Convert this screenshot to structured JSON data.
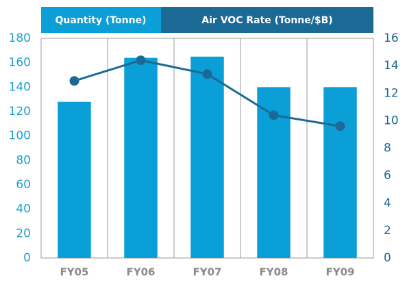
{
  "chart_data": {
    "type": "bar",
    "categories": [
      "FY05",
      "FY06",
      "FY07",
      "FY08",
      "FY09"
    ],
    "series": [
      {
        "name": "Quantity (Tonne)",
        "type": "bar",
        "color": "#0a9fd6",
        "values": [
          128,
          164,
          165,
          140,
          140
        ]
      },
      {
        "name": "Air VOC Rate (Tonne/$B)",
        "type": "line",
        "axis": "y2",
        "color": "#1b6a96",
        "values": [
          12.9,
          14.4,
          13.4,
          10.4,
          9.6
        ]
      }
    ],
    "ylim": [
      0,
      180
    ],
    "yticks": [
      0,
      20,
      40,
      60,
      80,
      100,
      120,
      140,
      160,
      180
    ],
    "y2lim": [
      0,
      16
    ],
    "y2ticks": [
      0,
      2,
      4,
      6,
      8,
      10,
      12,
      14,
      16
    ],
    "grid": true
  }
}
